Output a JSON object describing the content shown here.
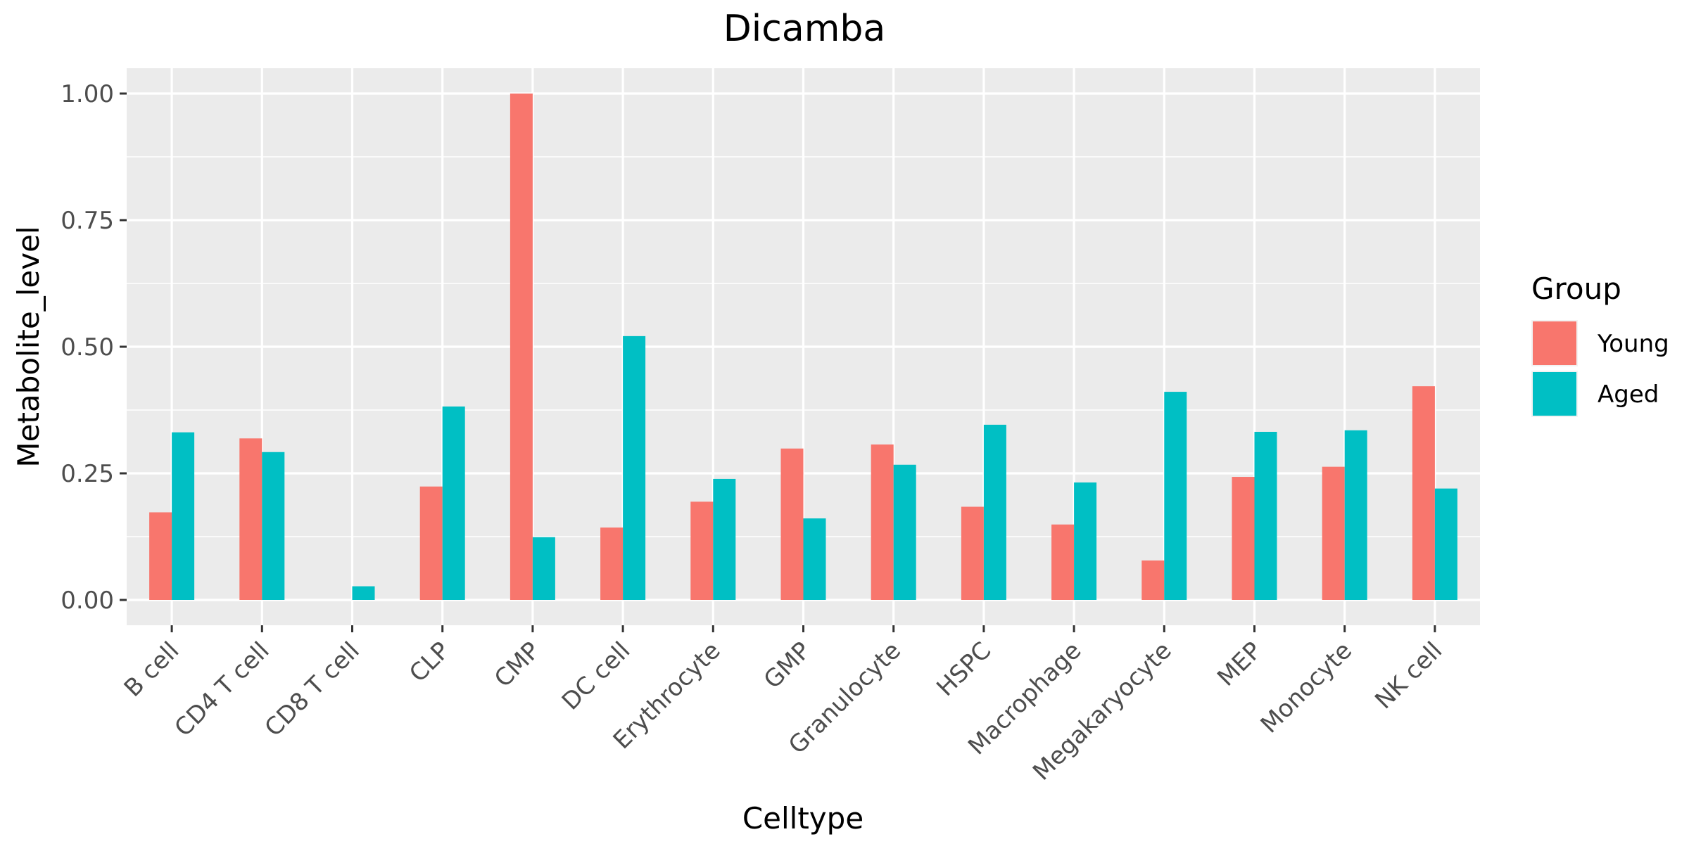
{
  "chart_data": {
    "type": "bar",
    "title": "Dicamba",
    "xlabel": "Celltype",
    "ylabel": "Metabolite_level",
    "ylim": [
      -0.05,
      1.05
    ],
    "yticks": [
      0.0,
      0.25,
      0.5,
      0.75,
      1.0
    ],
    "ytick_labels": [
      "0.00",
      "0.25",
      "0.50",
      "0.75",
      "1.00"
    ],
    "grid": true,
    "legend": {
      "title": "Group",
      "placement": "right"
    },
    "categories": [
      "B cell",
      "CD4 T cell",
      "CD8 T cell",
      "CLP",
      "CMP",
      "DC cell",
      "Erythrocyte",
      "GMP",
      "Granulocyte",
      "HSPC",
      "Macrophage",
      "Megakaryocyte",
      "MEP",
      "Monocyte",
      "NK cell"
    ],
    "series": [
      {
        "name": "Young",
        "color": "#F8766D",
        "values": [
          0.173,
          0.319,
          0.0,
          0.224,
          1.0,
          0.143,
          0.194,
          0.299,
          0.307,
          0.184,
          0.149,
          0.078,
          0.243,
          0.263,
          0.422
        ]
      },
      {
        "name": "Aged",
        "color": "#00BFC4",
        "values": [
          0.331,
          0.292,
          0.027,
          0.382,
          0.124,
          0.521,
          0.239,
          0.161,
          0.267,
          0.346,
          0.232,
          0.411,
          0.332,
          0.335,
          0.22
        ]
      }
    ]
  }
}
